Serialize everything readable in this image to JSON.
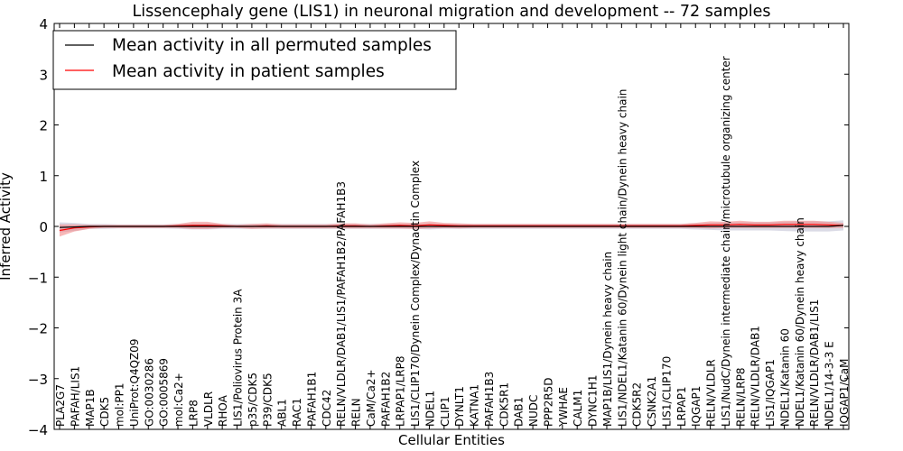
{
  "chart_data": {
    "type": "line",
    "title": "Lissencephaly gene (LIS1) in neuronal migration and development -- 72 samples",
    "xlabel": "Cellular Entities",
    "ylabel": "Inferred Activity",
    "ylim": [
      -4,
      4
    ],
    "yticks": [
      -4,
      -3,
      -2,
      -1,
      0,
      1,
      2,
      3,
      4
    ],
    "ytick_labels": [
      "−4",
      "−3",
      "−2",
      "−1",
      "0",
      "1",
      "2",
      "3",
      "4"
    ],
    "legend_location": "top-left",
    "categories": [
      "PLA2G7",
      "PAFAH/LIS1",
      "MAP1B",
      "CDK5",
      "mol:PP1",
      "UniProt:Q4QZ09",
      "GO:0030286",
      "GO:0005869",
      "mol:Ca2+",
      "LRP8",
      "VLDLR",
      "RHOA",
      "LIS1/Poliovirus Protein 3A",
      "p35/CDK5",
      "P39/CDK5",
      "ABL1",
      "RAC1",
      "PAFAH1B1",
      "CDC42",
      "RELN/VLDLR/DAB1/LIS1/PAFAH1B2/PAFAH1B3",
      "RELN",
      "CaM/Ca2+",
      "PAFAH1B2",
      "LRPAP1/LRP8",
      "LIS1/CLIP170/Dynein Complex/Dynactin Complex",
      "NDEL1",
      "CLIP1",
      "DYNLT1",
      "KATNA1",
      "PAFAH1B3",
      "CDK5R1",
      "DAB1",
      "NUDC",
      "PPP2R5D",
      "YWHAE",
      "CALM1",
      "DYNC1H1",
      "MAP1B/LIS1/Dynein heavy chain",
      "LIS1/NDEL1/Katanin 60/Dynein light chain/Dynein heavy chain",
      "CDK5R2",
      "CSNK2A1",
      "LIS1/CLIP170",
      "LRPAP1",
      "IQGAP1",
      "RELN/VLDLR",
      "LIS1/NudC/Dynein intermediate chain/microtubule organizing center",
      "RELN/LRP8",
      "RELN/VLDLR/DAB1",
      "LIS1/IQGAP1",
      "NDEL1/Katanin 60",
      "NDEL1/Katanin 60/Dynein heavy chain",
      "RELN/VLDLR/DAB1/LIS1",
      "NDEL1/14-3-3 E",
      "IQGAP1/CaM"
    ],
    "series": [
      {
        "name": "Mean activity in all permuted samples",
        "color": "#000000",
        "band_color": "#b0b0c8",
        "values": [
          -0.02,
          -0.01,
          0,
          0,
          0,
          0,
          0,
          0,
          0,
          0,
          0,
          0,
          0,
          0,
          0,
          0,
          0,
          0,
          0,
          0,
          0,
          0,
          0,
          0,
          0,
          0,
          0,
          0,
          0,
          0,
          0,
          0,
          0,
          0,
          0,
          0,
          0,
          0,
          0,
          0,
          0,
          0,
          0,
          0,
          0,
          0,
          0,
          0,
          0,
          0,
          0,
          0,
          0,
          0.02
        ],
        "band_half_width": [
          0.1,
          0.08,
          0.05,
          0.05,
          0.04,
          0.04,
          0.04,
          0.04,
          0.05,
          0.06,
          0.06,
          0.05,
          0.05,
          0.05,
          0.05,
          0.05,
          0.05,
          0.05,
          0.05,
          0.05,
          0.05,
          0.05,
          0.05,
          0.05,
          0.05,
          0.06,
          0.05,
          0.05,
          0.05,
          0.05,
          0.05,
          0.05,
          0.05,
          0.05,
          0.05,
          0.05,
          0.05,
          0.05,
          0.05,
          0.05,
          0.05,
          0.05,
          0.05,
          0.06,
          0.07,
          0.08,
          0.08,
          0.08,
          0.08,
          0.09,
          0.1,
          0.1,
          0.1,
          0.1
        ]
      },
      {
        "name": "Mean activity in patient samples",
        "color": "#ff0000",
        "band_color": "#f08080",
        "values": [
          -0.08,
          -0.03,
          -0.01,
          0,
          0,
          0,
          0,
          0,
          0.01,
          0.02,
          0.02,
          0.01,
          0,
          0,
          0.01,
          0,
          0,
          0,
          0,
          0.01,
          0.01,
          0,
          0.01,
          0.02,
          0.01,
          0.03,
          0.02,
          0.01,
          0.01,
          0.01,
          0.01,
          0.01,
          0.01,
          0.01,
          0.01,
          0.01,
          0.01,
          0.01,
          0.01,
          0.01,
          0.01,
          0.01,
          0.01,
          0.02,
          0.03,
          0.03,
          0.04,
          0.03,
          0.03,
          0.04,
          0.04,
          0.04,
          0.03,
          0.02
        ],
        "band_half_width": [
          0.12,
          0.07,
          0.04,
          0.03,
          0.03,
          0.03,
          0.03,
          0.03,
          0.04,
          0.07,
          0.07,
          0.04,
          0.03,
          0.05,
          0.05,
          0.04,
          0.04,
          0.04,
          0.04,
          0.05,
          0.05,
          0.04,
          0.05,
          0.06,
          0.06,
          0.07,
          0.05,
          0.05,
          0.04,
          0.04,
          0.04,
          0.04,
          0.04,
          0.04,
          0.04,
          0.04,
          0.04,
          0.04,
          0.04,
          0.04,
          0.04,
          0.04,
          0.04,
          0.05,
          0.07,
          0.06,
          0.07,
          0.06,
          0.06,
          0.07,
          0.07,
          0.07,
          0.06,
          0.05
        ]
      }
    ]
  }
}
